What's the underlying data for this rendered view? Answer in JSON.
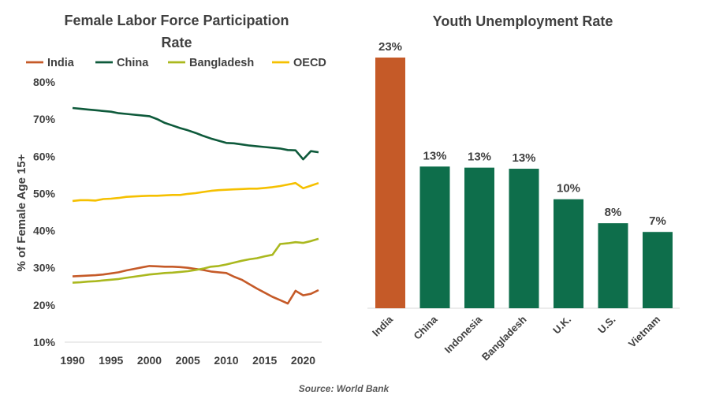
{
  "chart_data": [
    {
      "type": "line",
      "title_line1": "Female Labor Force Participation",
      "title_line2": "Rate",
      "ylabel": "% of Female Age 15+",
      "ylim": [
        10,
        80
      ],
      "yticks": [
        "10%",
        "20%",
        "30%",
        "40%",
        "50%",
        "60%",
        "70%",
        "80%"
      ],
      "ytick_values": [
        10,
        20,
        30,
        40,
        50,
        60,
        70,
        80
      ],
      "xlim": [
        1990,
        2022
      ],
      "xticks": [
        "1990",
        "1995",
        "2000",
        "2005",
        "2010",
        "2015",
        "2020"
      ],
      "xtick_values": [
        1990,
        1995,
        2000,
        2005,
        2010,
        2015,
        2020
      ],
      "grid": false,
      "legend_position": "top",
      "x": [
        1990,
        1991,
        1992,
        1993,
        1994,
        1995,
        1996,
        1997,
        1998,
        1999,
        2000,
        2001,
        2002,
        2003,
        2004,
        2005,
        2006,
        2007,
        2008,
        2009,
        2010,
        2011,
        2012,
        2013,
        2014,
        2015,
        2016,
        2017,
        2018,
        2019,
        2020,
        2021,
        2022
      ],
      "series": [
        {
          "name": "India",
          "color": "#c55a28",
          "values": [
            27.7,
            27.8,
            27.9,
            28.0,
            28.2,
            28.5,
            28.8,
            29.3,
            29.7,
            30.1,
            30.5,
            30.4,
            30.3,
            30.3,
            30.2,
            30.0,
            29.7,
            29.4,
            29.0,
            28.8,
            28.6,
            27.6,
            26.8,
            25.6,
            24.4,
            23.3,
            22.2,
            21.3,
            20.4,
            23.8,
            22.6,
            23.0,
            24.0
          ]
        },
        {
          "name": "China",
          "color": "#0e5a3b",
          "values": [
            73.0,
            72.8,
            72.6,
            72.4,
            72.2,
            72.0,
            71.6,
            71.4,
            71.2,
            71.0,
            70.8,
            70.0,
            69.0,
            68.3,
            67.6,
            67.0,
            66.3,
            65.5,
            64.8,
            64.2,
            63.6,
            63.5,
            63.2,
            62.9,
            62.7,
            62.5,
            62.3,
            62.1,
            61.7,
            61.6,
            59.2,
            61.4,
            61.1
          ]
        },
        {
          "name": "Bangladesh",
          "color": "#aab81e",
          "values": [
            26.0,
            26.1,
            26.3,
            26.4,
            26.6,
            26.8,
            27.0,
            27.3,
            27.6,
            27.9,
            28.2,
            28.4,
            28.6,
            28.7,
            28.9,
            29.1,
            29.4,
            29.8,
            30.3,
            30.5,
            30.9,
            31.4,
            31.9,
            32.3,
            32.6,
            33.1,
            33.5,
            36.4,
            36.6,
            36.9,
            36.7,
            37.2,
            37.8
          ]
        },
        {
          "name": "OECD",
          "color": "#f5c000",
          "values": [
            48.0,
            48.2,
            48.2,
            48.1,
            48.5,
            48.6,
            48.8,
            49.1,
            49.2,
            49.3,
            49.4,
            49.4,
            49.5,
            49.6,
            49.6,
            49.9,
            50.1,
            50.4,
            50.7,
            50.9,
            51.0,
            51.1,
            51.2,
            51.3,
            51.3,
            51.5,
            51.7,
            52.0,
            52.4,
            52.8,
            51.4,
            52.1,
            52.8
          ]
        }
      ]
    },
    {
      "type": "bar",
      "title": "Youth Unemployment Rate",
      "categories": [
        "India",
        "China",
        "Indonesia",
        "Bangladesh",
        "U.K.",
        "U.S.",
        "Vietnam"
      ],
      "values": [
        23.0,
        13.0,
        12.9,
        12.8,
        10.0,
        7.8,
        7.0
      ],
      "data_labels": [
        "23%",
        "13%",
        "13%",
        "13%",
        "10%",
        "8%",
        "7%"
      ],
      "colors": [
        "#c55a28",
        "#0e6e4b",
        "#0e6e4b",
        "#0e6e4b",
        "#0e6e4b",
        "#0e6e4b",
        "#0e6e4b"
      ],
      "ylim": [
        0,
        23
      ]
    }
  ],
  "source": "Source: World Bank"
}
